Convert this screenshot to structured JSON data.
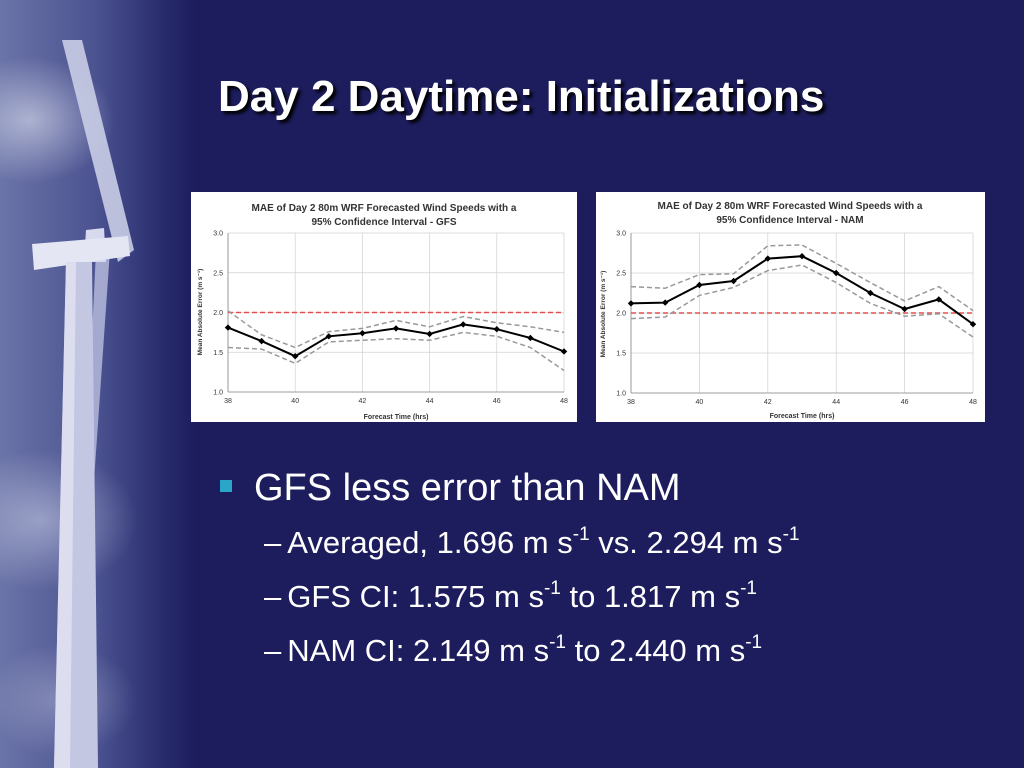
{
  "slide": {
    "title": "Day 2 Daytime: Initializations"
  },
  "bullets": {
    "main": "GFS less error than NAM",
    "subs": [
      {
        "lead": "Averaged, 1.696 m s",
        "sup1": "-1",
        "mid": " vs. 2.294 m s",
        "sup2": "-1"
      },
      {
        "lead": "GFS CI: 1.575 m s",
        "sup1": "-1",
        "mid": " to 1.817 m s",
        "sup2": "-1"
      },
      {
        "lead": "NAM CI: 2.149 m s",
        "sup1": "-1",
        "mid": " to 2.440 m s",
        "sup2": "-1"
      }
    ],
    "dash": "–"
  },
  "chart_data": [
    {
      "type": "line",
      "title_line1": "MAE of Day 2 80m WRF Forecasted Wind Speeds with a",
      "title_line2": "95% Confidence Interval - GFS",
      "xlabel": "Forecast Time (hrs)",
      "ylabel": "Mean Absolute Error (m s⁻¹)",
      "xlim": [
        38,
        48
      ],
      "ylim": [
        1.0,
        3.0
      ],
      "xticks": [
        "38",
        "40",
        "42",
        "44",
        "46",
        "48"
      ],
      "yticks": [
        "1.0",
        "1.5",
        "2.0",
        "2.5",
        "3.0"
      ],
      "reference_line": 2.0,
      "x": [
        38,
        39,
        40,
        41,
        42,
        43,
        44,
        45,
        46,
        47,
        48
      ],
      "series": [
        {
          "role": "mean",
          "color": "#000000",
          "values": [
            1.81,
            1.64,
            1.45,
            1.7,
            1.74,
            1.8,
            1.73,
            1.85,
            1.79,
            1.68,
            1.51
          ]
        },
        {
          "role": "upper",
          "color": "#999999",
          "values": [
            2.02,
            1.72,
            1.56,
            1.76,
            1.8,
            1.9,
            1.82,
            1.95,
            1.87,
            1.82,
            1.75
          ]
        },
        {
          "role": "lower",
          "color": "#999999",
          "values": [
            1.56,
            1.54,
            1.36,
            1.63,
            1.65,
            1.67,
            1.65,
            1.75,
            1.7,
            1.56,
            1.27
          ]
        }
      ]
    },
    {
      "type": "line",
      "title_line1": "MAE of Day 2 80m WRF Forecasted Wind Speeds with a",
      "title_line2": "95% Confidence Interval - NAM",
      "xlabel": "Forecast Time (hrs)",
      "ylabel": "Mean Absolute Error (m s⁻¹)",
      "xlim": [
        38,
        48
      ],
      "ylim": [
        1.0,
        3.0
      ],
      "xticks": [
        "38",
        "40",
        "42",
        "44",
        "46",
        "48"
      ],
      "yticks": [
        "1.0",
        "1.5",
        "2.0",
        "2.5",
        "3.0"
      ],
      "reference_line": 2.0,
      "x": [
        38,
        39,
        40,
        41,
        42,
        43,
        44,
        45,
        46,
        47,
        48
      ],
      "series": [
        {
          "role": "mean",
          "color": "#000000",
          "values": [
            2.12,
            2.13,
            2.35,
            2.4,
            2.68,
            2.71,
            2.5,
            2.25,
            2.05,
            2.17,
            1.86
          ]
        },
        {
          "role": "upper",
          "color": "#999999",
          "values": [
            2.33,
            2.31,
            2.48,
            2.49,
            2.84,
            2.85,
            2.62,
            2.38,
            2.15,
            2.33,
            2.03
          ]
        },
        {
          "role": "lower",
          "color": "#999999",
          "values": [
            1.93,
            1.95,
            2.22,
            2.32,
            2.53,
            2.6,
            2.38,
            2.12,
            1.96,
            1.99,
            1.7
          ]
        }
      ]
    }
  ]
}
